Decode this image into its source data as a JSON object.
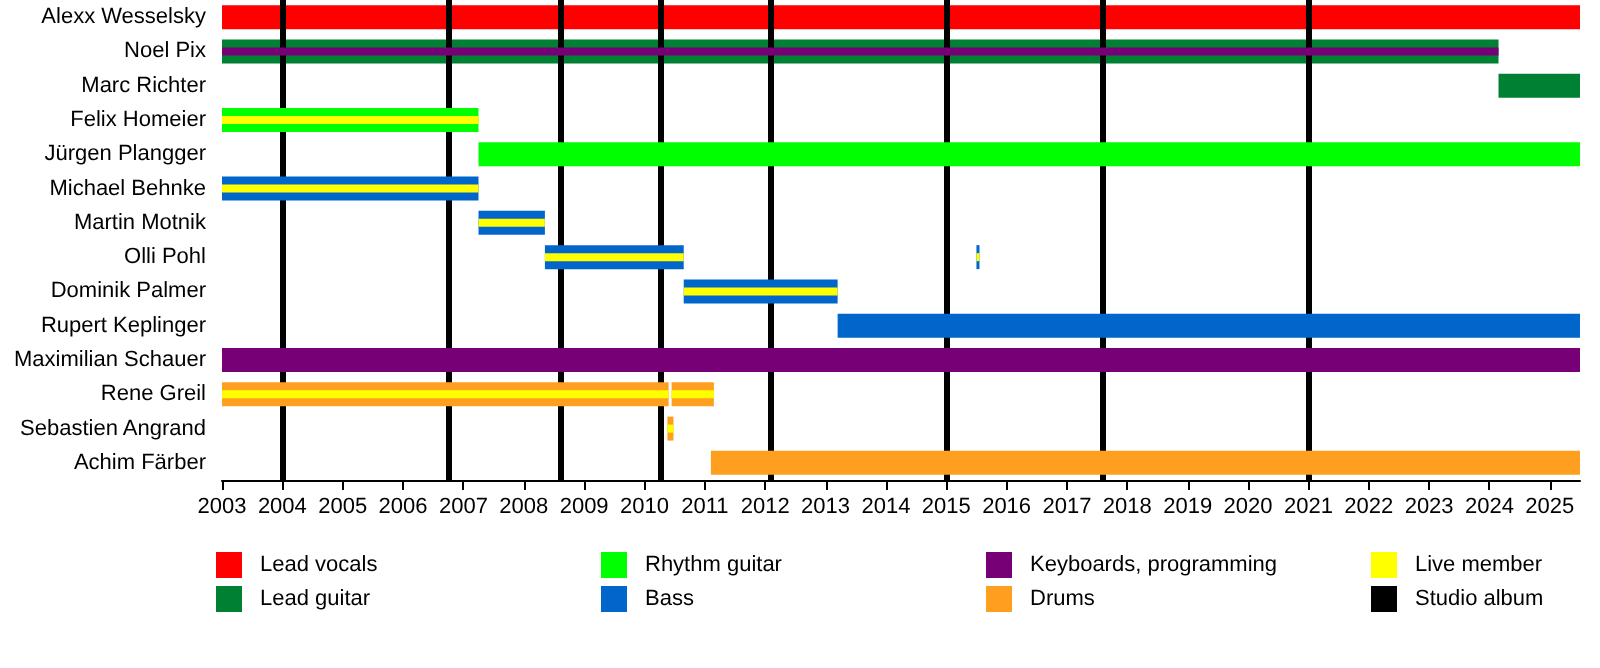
{
  "chart_data": {
    "type": "bar",
    "orientation": "horizontal",
    "legend": "bottom",
    "grid": false,
    "categories": [
      "Alexx Wesselsky",
      "Noel Pix",
      "Marc Richter",
      "Felix Homeier",
      "Jürgen Plangger",
      "Michael Behnke",
      "Martin Motnik",
      "Olli Pohl",
      "Dominik Palmer",
      "Rupert Keplinger",
      "Maximilian Schauer",
      "Rene Greil",
      "Sebastien Angrand",
      "Achim Färber"
    ],
    "xlim": [
      2003,
      2025.5
    ],
    "xticks": [
      2003,
      2004,
      2005,
      2006,
      2007,
      2008,
      2009,
      2010,
      2011,
      2012,
      2013,
      2014,
      2015,
      2016,
      2017,
      2018,
      2019,
      2020,
      2021,
      2022,
      2023,
      2024,
      2025
    ],
    "series": [
      {
        "name": "Lead vocals",
        "color": "#ff0000",
        "base": [
          2003,
          null,
          null,
          null,
          null,
          null,
          null,
          null,
          null,
          null,
          null,
          null,
          null,
          null
        ],
        "values": [
          22.5,
          null,
          null,
          null,
          null,
          null,
          null,
          null,
          null,
          null,
          null,
          null,
          null,
          null
        ]
      },
      {
        "name": "Lead guitar",
        "color": "#008033",
        "base": [
          null,
          2003,
          2024.15,
          null,
          null,
          null,
          null,
          null,
          null,
          null,
          null,
          null,
          null,
          null
        ],
        "values": [
          null,
          21.15,
          1.35,
          null,
          null,
          null,
          null,
          null,
          null,
          null,
          null,
          null,
          null,
          null
        ]
      },
      {
        "name": "Rhythm guitar",
        "color": "#00ff00",
        "base": [
          null,
          null,
          null,
          2003,
          2007.25,
          null,
          null,
          null,
          null,
          null,
          null,
          null,
          null,
          null
        ],
        "values": [
          null,
          null,
          null,
          4.25,
          18.25,
          null,
          null,
          null,
          null,
          null,
          null,
          null,
          null,
          null
        ]
      },
      {
        "name": "Bass",
        "color": "#0066cc",
        "base": [
          null,
          null,
          null,
          null,
          null,
          2003,
          2007.25,
          2008.35,
          2010.65,
          2013.2,
          null,
          null,
          null,
          null
        ],
        "values": [
          null,
          null,
          null,
          null,
          null,
          4.25,
          1.1,
          2.3,
          2.55,
          12.3,
          null,
          null,
          null,
          null
        ]
      },
      {
        "name": "Keyboards, programming",
        "color": "#770077",
        "base": [
          null,
          2003,
          null,
          null,
          null,
          null,
          null,
          null,
          null,
          null,
          2003,
          null,
          null,
          null
        ],
        "values": [
          null,
          21.15,
          null,
          null,
          null,
          null,
          null,
          null,
          null,
          null,
          22.5,
          null,
          null,
          null
        ]
      },
      {
        "name": "Drums",
        "color": "#ff9f20",
        "base": [
          null,
          null,
          null,
          null,
          null,
          null,
          null,
          null,
          null,
          null,
          null,
          2003,
          2010.38,
          2011.1
        ],
        "values": [
          null,
          null,
          null,
          null,
          null,
          null,
          null,
          null,
          null,
          null,
          null,
          7.4,
          0.1,
          14.4
        ]
      },
      {
        "color": "#0066cc",
        "base": [
          null,
          null,
          null,
          null,
          null,
          null,
          null,
          2015.5,
          null,
          null,
          null,
          null,
          null,
          null
        ],
        "values": [
          null,
          null,
          null,
          null,
          null,
          null,
          null,
          0.05,
          null,
          null,
          null,
          null,
          null,
          null
        ]
      },
      {
        "color": "#ff9f20",
        "base": [
          null,
          null,
          null,
          null,
          null,
          null,
          null,
          null,
          null,
          null,
          null,
          2010.45,
          null,
          null
        ],
        "values": [
          null,
          null,
          null,
          null,
          null,
          null,
          null,
          null,
          null,
          null,
          null,
          0.7,
          null,
          null
        ]
      },
      {
        "name": "Live member",
        "color": "#ffff00",
        "base": [
          null,
          null,
          null,
          2003,
          null,
          2003,
          2007.25,
          2008.35,
          2010.65,
          null,
          null,
          2003,
          2010.38,
          null
        ],
        "values": [
          null,
          null,
          null,
          4.25,
          null,
          4.25,
          1.1,
          2.3,
          2.55,
          null,
          null,
          7.4,
          0.1,
          null
        ]
      },
      {
        "color": "#ffff00",
        "base": [
          null,
          null,
          null,
          null,
          null,
          null,
          null,
          2015.5,
          null,
          null,
          null,
          2010.45,
          null,
          null
        ],
        "values": [
          null,
          null,
          null,
          null,
          null,
          null,
          null,
          0.05,
          null,
          null,
          null,
          0.7,
          null,
          null
        ]
      }
    ],
    "ref_lines": [
      {
        "axis": "x",
        "value": 2004.0,
        "label": "Studio album",
        "color": "#000000"
      },
      {
        "axis": "x",
        "value": 2006.75,
        "color": "#000000"
      },
      {
        "axis": "x",
        "value": 2008.6,
        "color": "#000000"
      },
      {
        "axis": "x",
        "value": 2010.25,
        "color": "#000000"
      },
      {
        "axis": "x",
        "value": 2012.1,
        "color": "#000000"
      },
      {
        "axis": "x",
        "value": 2015.0,
        "color": "#000000"
      },
      {
        "axis": "x",
        "value": 2017.6,
        "color": "#000000"
      },
      {
        "axis": "x",
        "value": 2021.0,
        "color": "#000000"
      }
    ]
  }
}
